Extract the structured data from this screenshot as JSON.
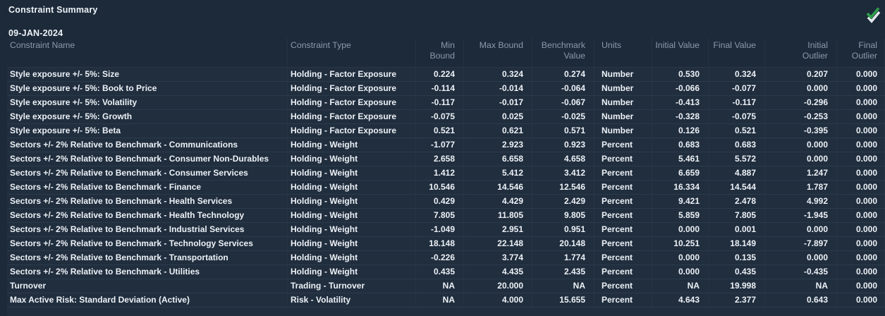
{
  "panel": {
    "title": "Constraint Summary",
    "date": "09-JAN-2024"
  },
  "icons": {
    "status_check": "green-check-over-white-check"
  },
  "colors": {
    "background": "#1c2a39",
    "row_background": "#202e3e",
    "row_text": "#edf1f6",
    "header_text": "#8b9aac",
    "check_green": "#2f9e4b",
    "check_white": "#e4e9ee"
  },
  "table": {
    "columns": [
      {
        "key": "name",
        "label": "Constraint Name",
        "align": "left"
      },
      {
        "key": "type",
        "label": "Constraint Type",
        "align": "left"
      },
      {
        "key": "min",
        "label": "Min Bound",
        "align": "right"
      },
      {
        "key": "max",
        "label": "Max Bound",
        "align": "right"
      },
      {
        "key": "benchmark",
        "label": "Benchmark\nValue",
        "align": "right"
      },
      {
        "key": "units",
        "label": "Units",
        "align": "left"
      },
      {
        "key": "initial",
        "label": "Initial Value",
        "align": "right"
      },
      {
        "key": "final",
        "label": "Final Value",
        "align": "right"
      },
      {
        "key": "init_outlier",
        "label": "Initial\nOutlier",
        "align": "right"
      },
      {
        "key": "final_outlier",
        "label": "Final\nOutlier",
        "align": "right"
      }
    ],
    "rows": [
      {
        "name": "Style exposure +/- 5%: Size",
        "type": "Holding - Factor Exposure",
        "min": "0.224",
        "max": "0.324",
        "benchmark": "0.274",
        "units": "Number",
        "initial": "0.530",
        "final": "0.324",
        "init_outlier": "0.207",
        "final_outlier": "0.000"
      },
      {
        "name": "Style exposure +/- 5%: Book to Price",
        "type": "Holding - Factor Exposure",
        "min": "-0.114",
        "max": "-0.014",
        "benchmark": "-0.064",
        "units": "Number",
        "initial": "-0.066",
        "final": "-0.077",
        "init_outlier": "0.000",
        "final_outlier": "0.000"
      },
      {
        "name": "Style exposure +/- 5%: Volatility",
        "type": "Holding - Factor Exposure",
        "min": "-0.117",
        "max": "-0.017",
        "benchmark": "-0.067",
        "units": "Number",
        "initial": "-0.413",
        "final": "-0.117",
        "init_outlier": "-0.296",
        "final_outlier": "0.000"
      },
      {
        "name": "Style exposure +/- 5%: Growth",
        "type": "Holding - Factor Exposure",
        "min": "-0.075",
        "max": "0.025",
        "benchmark": "-0.025",
        "units": "Number",
        "initial": "-0.328",
        "final": "-0.075",
        "init_outlier": "-0.253",
        "final_outlier": "0.000"
      },
      {
        "name": "Style exposure +/- 5%: Beta",
        "type": "Holding - Factor Exposure",
        "min": "0.521",
        "max": "0.621",
        "benchmark": "0.571",
        "units": "Number",
        "initial": "0.126",
        "final": "0.521",
        "init_outlier": "-0.395",
        "final_outlier": "0.000"
      },
      {
        "name": "Sectors +/- 2% Relative to Benchmark - Communications",
        "type": "Holding - Weight",
        "min": "-1.077",
        "max": "2.923",
        "benchmark": "0.923",
        "units": "Percent",
        "initial": "0.683",
        "final": "0.683",
        "init_outlier": "0.000",
        "final_outlier": "0.000"
      },
      {
        "name": "Sectors +/- 2% Relative to Benchmark - Consumer Non-Durables",
        "type": "Holding - Weight",
        "min": "2.658",
        "max": "6.658",
        "benchmark": "4.658",
        "units": "Percent",
        "initial": "5.461",
        "final": "5.572",
        "init_outlier": "0.000",
        "final_outlier": "0.000"
      },
      {
        "name": "Sectors +/- 2% Relative to Benchmark - Consumer Services",
        "type": "Holding - Weight",
        "min": "1.412",
        "max": "5.412",
        "benchmark": "3.412",
        "units": "Percent",
        "initial": "6.659",
        "final": "4.887",
        "init_outlier": "1.247",
        "final_outlier": "0.000"
      },
      {
        "name": "Sectors +/- 2% Relative to Benchmark - Finance",
        "type": "Holding - Weight",
        "min": "10.546",
        "max": "14.546",
        "benchmark": "12.546",
        "units": "Percent",
        "initial": "16.334",
        "final": "14.544",
        "init_outlier": "1.787",
        "final_outlier": "0.000"
      },
      {
        "name": "Sectors +/- 2% Relative to Benchmark - Health Services",
        "type": "Holding - Weight",
        "min": "0.429",
        "max": "4.429",
        "benchmark": "2.429",
        "units": "Percent",
        "initial": "9.421",
        "final": "2.478",
        "init_outlier": "4.992",
        "final_outlier": "0.000"
      },
      {
        "name": "Sectors +/- 2% Relative to Benchmark - Health Technology",
        "type": "Holding - Weight",
        "min": "7.805",
        "max": "11.805",
        "benchmark": "9.805",
        "units": "Percent",
        "initial": "5.859",
        "final": "7.805",
        "init_outlier": "-1.945",
        "final_outlier": "0.000"
      },
      {
        "name": "Sectors +/- 2% Relative to Benchmark - Industrial Services",
        "type": "Holding - Weight",
        "min": "-1.049",
        "max": "2.951",
        "benchmark": "0.951",
        "units": "Percent",
        "initial": "0.000",
        "final": "0.001",
        "init_outlier": "0.000",
        "final_outlier": "0.000"
      },
      {
        "name": "Sectors +/- 2% Relative to Benchmark - Technology Services",
        "type": "Holding - Weight",
        "min": "18.148",
        "max": "22.148",
        "benchmark": "20.148",
        "units": "Percent",
        "initial": "10.251",
        "final": "18.149",
        "init_outlier": "-7.897",
        "final_outlier": "0.000"
      },
      {
        "name": "Sectors +/- 2% Relative to Benchmark - Transportation",
        "type": "Holding - Weight",
        "min": "-0.226",
        "max": "3.774",
        "benchmark": "1.774",
        "units": "Percent",
        "initial": "0.000",
        "final": "0.135",
        "init_outlier": "0.000",
        "final_outlier": "0.000"
      },
      {
        "name": "Sectors +/- 2% Relative to Benchmark - Utilities",
        "type": "Holding - Weight",
        "min": "0.435",
        "max": "4.435",
        "benchmark": "2.435",
        "units": "Percent",
        "initial": "0.000",
        "final": "0.435",
        "init_outlier": "-0.435",
        "final_outlier": "0.000"
      },
      {
        "name": "Turnover",
        "type": "Trading - Turnover",
        "min": "NA",
        "max": "20.000",
        "benchmark": "NA",
        "units": "Percent",
        "initial": "NA",
        "final": "19.998",
        "init_outlier": "NA",
        "final_outlier": "0.000"
      },
      {
        "name": "Max Active Risk: Standard Deviation (Active)",
        "type": "Risk - Volatility",
        "min": "NA",
        "max": "4.000",
        "benchmark": "15.655",
        "units": "Percent",
        "initial": "4.643",
        "final": "2.377",
        "init_outlier": "0.643",
        "final_outlier": "0.000"
      }
    ]
  }
}
